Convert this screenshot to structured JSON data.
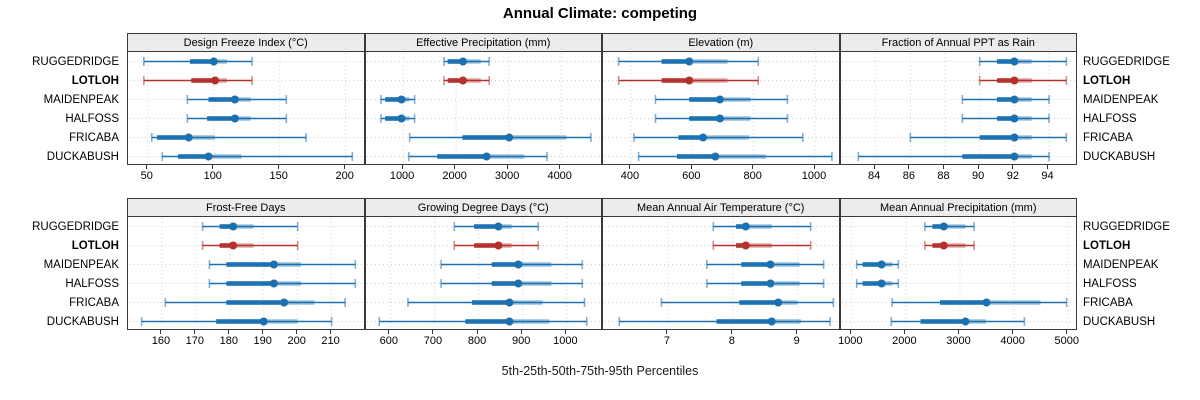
{
  "title": "Annual Climate: competing",
  "caption": "5th-25th-50th-75th-95th Percentiles",
  "colors": {
    "default_series": "#1a70b0",
    "highlight_series": "#b5312b",
    "strip_bg": "#ececec",
    "panel_border": "#3a3a3a",
    "grid": "#c9d0d6"
  },
  "sites": [
    "RUGGEDRIDGE",
    "LOTLOH",
    "MAIDENPEAK",
    "HALFOSS",
    "FRICABA",
    "DUCKABUSH"
  ],
  "highlight_site": "LOTLOH",
  "chart_data": {
    "type": "scatter",
    "subtype": "percentile-whisker-dotplot",
    "note": "Each row shows 5th-25th-50th-75th-95th percentiles; dot = median",
    "legend_position": "none",
    "grid": true,
    "panels": [
      {
        "title": "Design Freeze Index (°C)",
        "grid_row": 0,
        "grid_col": 0,
        "xlim": [
          35,
          215
        ],
        "ticks": [
          50,
          100,
          150,
          200
        ],
        "series": [
          {
            "site": "RUGGEDRIDGE",
            "percentiles": [
              47,
              82,
              100,
              110,
              129
            ]
          },
          {
            "site": "LOTLOH",
            "percentiles": [
              47,
              83,
              101,
              110,
              129
            ]
          },
          {
            "site": "MAIDENPEAK",
            "percentiles": [
              80,
              96,
              116,
              128,
              155
            ]
          },
          {
            "site": "HALFOSS",
            "percentiles": [
              80,
              95,
              116,
              128,
              155
            ]
          },
          {
            "site": "FRICABA",
            "percentiles": [
              53,
              57,
              81,
              101,
              170
            ]
          },
          {
            "site": "DUCKABUSH",
            "percentiles": [
              61,
              73,
              96,
              121,
              205
            ]
          }
        ]
      },
      {
        "title": "Effective Precipitation (mm)",
        "grid_row": 0,
        "grid_col": 1,
        "xlim": [
          285,
          4805
        ],
        "ticks": [
          1000,
          2000,
          3000,
          4000
        ],
        "series": [
          {
            "site": "RUGGEDRIDGE",
            "percentiles": [
              1770,
              1840,
              2130,
              2470,
              2630
            ]
          },
          {
            "site": "LOTLOH",
            "percentiles": [
              1770,
              1840,
              2130,
              2470,
              2630
            ]
          },
          {
            "site": "MAIDENPEAK",
            "percentiles": [
              570,
              650,
              960,
              1110,
              1210
            ]
          },
          {
            "site": "HALFOSS",
            "percentiles": [
              570,
              650,
              960,
              1110,
              1210
            ]
          },
          {
            "site": "FRICABA",
            "percentiles": [
              1115,
              2120,
              3010,
              4100,
              4565
            ]
          },
          {
            "site": "DUCKABUSH",
            "percentiles": [
              1100,
              1640,
              2580,
              3300,
              3730
            ]
          }
        ]
      },
      {
        "title": "Elevation (m)",
        "grid_row": 0,
        "grid_col": 2,
        "xlim": [
          309,
          1083
        ],
        "ticks": [
          400,
          600,
          800,
          1000
        ],
        "series": [
          {
            "site": "RUGGEDRIDGE",
            "percentiles": [
              360,
              500,
              590,
              715,
              815
            ]
          },
          {
            "site": "LOTLOH",
            "percentiles": [
              360,
              500,
              590,
              715,
              815
            ]
          },
          {
            "site": "MAIDENPEAK",
            "percentiles": [
              480,
              590,
              690,
              790,
              910
            ]
          },
          {
            "site": "HALFOSS",
            "percentiles": [
              480,
              590,
              690,
              790,
              910
            ]
          },
          {
            "site": "FRICABA",
            "percentiles": [
              410,
              555,
              635,
              785,
              960
            ]
          },
          {
            "site": "DUCKABUSH",
            "percentiles": [
              425,
              550,
              675,
              840,
              1055
            ]
          }
        ]
      },
      {
        "title": "Fraction of Annual PPT as Rain",
        "grid_row": 0,
        "grid_col": 3,
        "xlim": [
          82,
          95.7
        ],
        "ticks": [
          84,
          86,
          88,
          90,
          92,
          94
        ],
        "series": [
          {
            "site": "RUGGEDRIDGE",
            "percentiles": [
              90,
              91,
              92,
              93,
              95
            ]
          },
          {
            "site": "LOTLOH",
            "percentiles": [
              90,
              91,
              92,
              93,
              95
            ]
          },
          {
            "site": "MAIDENPEAK",
            "percentiles": [
              89,
              91,
              92,
              93,
              94
            ]
          },
          {
            "site": "HALFOSS",
            "percentiles": [
              89,
              91,
              92,
              93,
              94
            ]
          },
          {
            "site": "FRICABA",
            "percentiles": [
              86,
              90,
              92,
              93,
              95
            ]
          },
          {
            "site": "DUCKABUSH",
            "percentiles": [
              83,
              89,
              92,
              93,
              94
            ]
          }
        ]
      },
      {
        "title": "Frost-Free Days",
        "grid_row": 1,
        "grid_col": 0,
        "xlim": [
          150,
          220
        ],
        "ticks": [
          160,
          170,
          180,
          190,
          200,
          210
        ],
        "series": [
          {
            "site": "RUGGEDRIDGE",
            "percentiles": [
              172,
              177,
              181,
              187,
              200
            ]
          },
          {
            "site": "LOTLOH",
            "percentiles": [
              172,
              177,
              181,
              187,
              200
            ]
          },
          {
            "site": "MAIDENPEAK",
            "percentiles": [
              174,
              179,
              193,
              201,
              217
            ]
          },
          {
            "site": "HALFOSS",
            "percentiles": [
              174,
              179,
              193,
              201,
              217
            ]
          },
          {
            "site": "FRICABA",
            "percentiles": [
              161,
              179,
              196,
              205,
              214
            ]
          },
          {
            "site": "DUCKABUSH",
            "percentiles": [
              154,
              176,
              190,
              200,
              210
            ]
          }
        ]
      },
      {
        "title": "Growing Degree Days (°C)",
        "grid_row": 1,
        "grid_col": 1,
        "xlim": [
          545,
          1083
        ],
        "ticks": [
          600,
          700,
          800,
          900,
          1000
        ],
        "series": [
          {
            "site": "RUGGEDRIDGE",
            "percentiles": [
              745,
              790,
              845,
              875,
              935
            ]
          },
          {
            "site": "LOTLOH",
            "percentiles": [
              745,
              790,
              845,
              875,
              935
            ]
          },
          {
            "site": "MAIDENPEAK",
            "percentiles": [
              715,
              830,
              890,
              965,
              1035
            ]
          },
          {
            "site": "HALFOSS",
            "percentiles": [
              715,
              830,
              890,
              965,
              1035
            ]
          },
          {
            "site": "FRICABA",
            "percentiles": [
              640,
              785,
              870,
              945,
              1040
            ]
          },
          {
            "site": "DUCKABUSH",
            "percentiles": [
              575,
              770,
              870,
              960,
              1045
            ]
          }
        ]
      },
      {
        "title": "Mean Annual Air Temperature (°C)",
        "grid_row": 1,
        "grid_col": 2,
        "xlim": [
          6.0,
          9.66
        ],
        "ticks": [
          7,
          8,
          9
        ],
        "series": [
          {
            "site": "RUGGEDRIDGE",
            "percentiles": [
              7.7,
              8.05,
              8.2,
              8.6,
              9.2
            ]
          },
          {
            "site": "LOTLOH",
            "percentiles": [
              7.7,
              8.05,
              8.2,
              8.6,
              9.2
            ]
          },
          {
            "site": "MAIDENPEAK",
            "percentiles": [
              7.6,
              8.13,
              8.58,
              9.03,
              9.4
            ]
          },
          {
            "site": "HALFOSS",
            "percentiles": [
              7.6,
              8.13,
              8.58,
              9.03,
              9.4
            ]
          },
          {
            "site": "FRICABA",
            "percentiles": [
              6.9,
              8.1,
              8.7,
              9.0,
              9.55
            ]
          },
          {
            "site": "DUCKABUSH",
            "percentiles": [
              6.25,
              7.75,
              8.6,
              9.05,
              9.5
            ]
          }
        ]
      },
      {
        "title": "Mean Annual Precipitation (mm)",
        "grid_row": 1,
        "grid_col": 3,
        "xlim": [
          800,
          5190
        ],
        "ticks": [
          1000,
          2000,
          3000,
          4000,
          5000
        ],
        "series": [
          {
            "site": "RUGGEDRIDGE",
            "percentiles": [
              2350,
              2490,
              2700,
              3100,
              3260
            ]
          },
          {
            "site": "LOTLOH",
            "percentiles": [
              2350,
              2490,
              2700,
              3100,
              3260
            ]
          },
          {
            "site": "MAIDENPEAK",
            "percentiles": [
              1090,
              1200,
              1550,
              1750,
              1860
            ]
          },
          {
            "site": "HALFOSS",
            "percentiles": [
              1090,
              1200,
              1550,
              1750,
              1860
            ]
          },
          {
            "site": "FRICABA",
            "percentiles": [
              1745,
              2630,
              3490,
              4490,
              4970
            ]
          },
          {
            "site": "DUCKABUSH",
            "percentiles": [
              1730,
              2270,
              3100,
              3480,
              4190
            ]
          }
        ]
      }
    ]
  }
}
